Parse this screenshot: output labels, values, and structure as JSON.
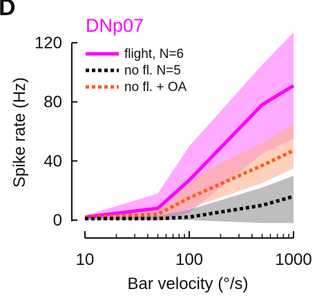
{
  "panel_label": "D",
  "chart_data": {
    "type": "line",
    "title": "DNp07",
    "title_color": "#ff00ff",
    "xlabel": "Bar velocity (°/s)",
    "ylabel": "Spike rate (Hz)",
    "x_scale": "log",
    "xlim": [
      10,
      1000
    ],
    "ylim": [
      0,
      120
    ],
    "x_ticks": [
      10,
      100,
      1000
    ],
    "x_tick_labels": [
      "10",
      "100",
      "1000"
    ],
    "y_ticks": [
      0,
      40,
      80,
      120
    ],
    "y_tick_labels": [
      "0",
      "40",
      "80",
      "120"
    ],
    "grid": false,
    "legend_position": "top-left",
    "x": [
      10,
      50,
      100,
      500,
      1000
    ],
    "series": [
      {
        "name": "flight, N=6",
        "style": "solid",
        "color": "#ff00ff",
        "band_color": "#ff66ff",
        "values": [
          2,
          8,
          27,
          78,
          91
        ],
        "lower": [
          1,
          0,
          5,
          45,
          55
        ],
        "upper": [
          3,
          18,
          50,
          105,
          127
        ]
      },
      {
        "name": "no fl. N=5",
        "style": "dotted",
        "color": "#000000",
        "band_color": "#888888",
        "values": [
          1,
          1,
          2,
          10,
          16
        ],
        "lower": [
          0,
          0,
          0,
          -2,
          -2
        ],
        "upper": [
          2,
          3,
          7,
          22,
          30
        ]
      },
      {
        "name": "no fl. + OA",
        "style": "dotted",
        "color": "#ff5a1f",
        "band_color": "#ffb090",
        "values": [
          2,
          4,
          15,
          37,
          47
        ],
        "lower": [
          1,
          1,
          8,
          25,
          35
        ],
        "upper": [
          3,
          9,
          28,
          52,
          65
        ]
      }
    ]
  }
}
